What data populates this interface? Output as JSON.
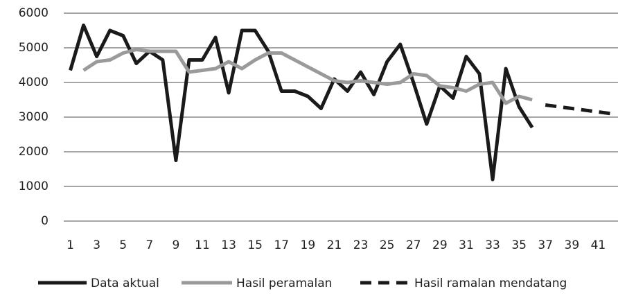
{
  "chart_data": {
    "type": "line",
    "categories": [
      "1",
      null,
      "3",
      null,
      "5",
      null,
      "7",
      null,
      "9",
      null,
      "11",
      null,
      "13",
      null,
      "15",
      null,
      "17",
      null,
      "19",
      null,
      "21",
      null,
      "23",
      null,
      "25",
      null,
      "27",
      null,
      "29",
      null,
      "31",
      null,
      "33",
      null,
      "35",
      null,
      "37",
      null,
      "39",
      null,
      "41",
      null
    ],
    "ylim": [
      0,
      6000
    ],
    "yticks": [
      0,
      1000,
      2000,
      3000,
      4000,
      5000,
      6000
    ],
    "grid": true,
    "legend": "bottom",
    "series": [
      {
        "name": "Data aktual",
        "color": "#1a1a1a",
        "dash": false,
        "values": [
          4350,
          5650,
          4750,
          5500,
          5350,
          4550,
          4900,
          4650,
          1750,
          4650,
          4650,
          5300,
          3700,
          5500,
          5500,
          4900,
          3750,
          3750,
          3600,
          3250,
          4100,
          3750,
          4300,
          3650,
          4600,
          5100,
          4000,
          2800,
          3900,
          3550,
          4750,
          4250,
          1200,
          4400,
          3300,
          2700,
          null,
          null,
          null,
          null,
          null,
          null
        ]
      },
      {
        "name": "Hasil peramalan",
        "color": "#9a9a9a",
        "dash": false,
        "values": [
          null,
          4350,
          4600,
          4650,
          4850,
          4950,
          4900,
          4900,
          4900,
          4300,
          4350,
          4400,
          4600,
          4400,
          4650,
          4850,
          4850,
          4650,
          4450,
          4250,
          4050,
          4000,
          4050,
          4000,
          3950,
          4000,
          4250,
          4200,
          3900,
          3850,
          3750,
          3950,
          4000,
          3400,
          3600,
          3500,
          null,
          null,
          null,
          null,
          null,
          null
        ]
      },
      {
        "name": "Hasil ramalan mendatang",
        "color": "#1a1a1a",
        "dash": true,
        "values": [
          null,
          null,
          null,
          null,
          null,
          null,
          null,
          null,
          null,
          null,
          null,
          null,
          null,
          null,
          null,
          null,
          null,
          null,
          null,
          null,
          null,
          null,
          null,
          null,
          null,
          null,
          null,
          null,
          null,
          null,
          null,
          null,
          null,
          null,
          null,
          null,
          3350,
          3300,
          3250,
          3200,
          3150,
          3100
        ]
      }
    ]
  }
}
